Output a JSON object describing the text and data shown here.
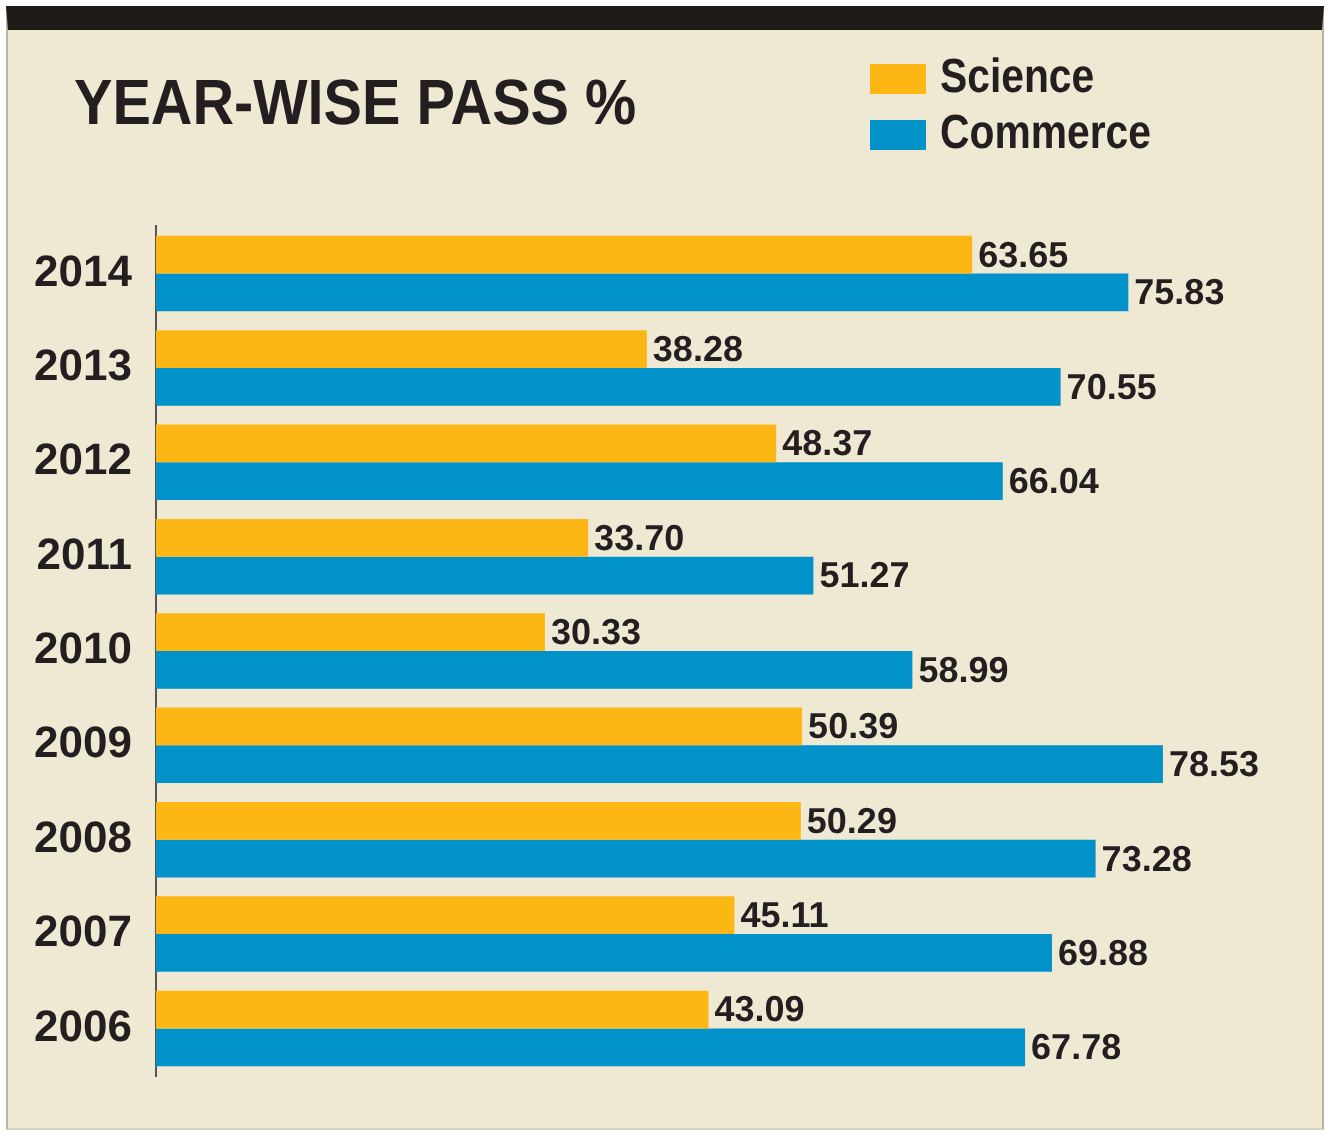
{
  "chart_data": {
    "type": "bar",
    "orientation": "horizontal",
    "title": "YEAR-WISE PASS %",
    "categories": [
      "2014",
      "2013",
      "2012",
      "2011",
      "2010",
      "2009",
      "2008",
      "2007",
      "2006"
    ],
    "series": [
      {
        "name": "Science",
        "color": "#fdb714",
        "values": [
          63.65,
          38.28,
          48.37,
          33.7,
          30.33,
          50.39,
          50.29,
          45.11,
          43.09
        ],
        "value_labels": [
          "63.65",
          "38.28",
          "48.37",
          "33.70",
          "30.33",
          "50.39",
          "50.29",
          "45.11",
          "43.09"
        ]
      },
      {
        "name": "Commerce",
        "color": "#0092c9",
        "values": [
          75.83,
          70.55,
          66.04,
          51.27,
          58.99,
          78.53,
          73.28,
          69.88,
          67.78
        ],
        "value_labels": [
          "75.83",
          "70.55",
          "66.04",
          "51.27",
          "58.99",
          "78.53",
          "73.28",
          "69.88",
          "67.78"
        ]
      }
    ],
    "tick_labels": "y",
    "legend": "top right"
  }
}
